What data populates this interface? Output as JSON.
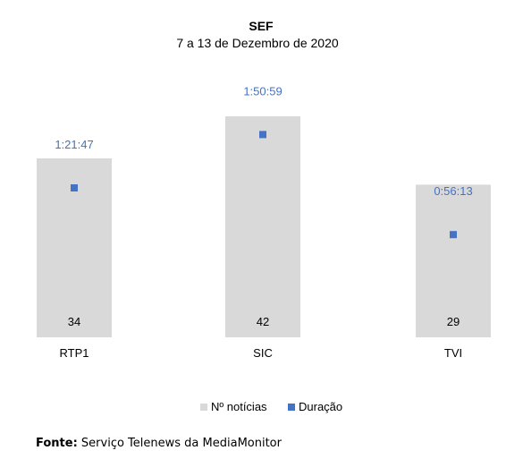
{
  "chart_data": {
    "type": "bar",
    "title": "SEF",
    "subtitle": "7 a 13 de Dezembro de 2020",
    "categories": [
      "RTP1",
      "SIC",
      "TVI"
    ],
    "series": [
      {
        "name": "Nº notícias",
        "type": "bar",
        "values": [
          34,
          42,
          29
        ],
        "color": "#d9d9d9"
      },
      {
        "name": "Duração",
        "type": "scatter",
        "values": [
          "1:21:47",
          "1:50:59",
          "0:56:13"
        ],
        "seconds": [
          4907,
          6659,
          3373
        ],
        "color": "#4472c4"
      }
    ],
    "legend_position": "bottom",
    "grid": false
  },
  "footer": {
    "label": "Fonte:",
    "text": "Serviço Telenews da MediaMonitor"
  }
}
